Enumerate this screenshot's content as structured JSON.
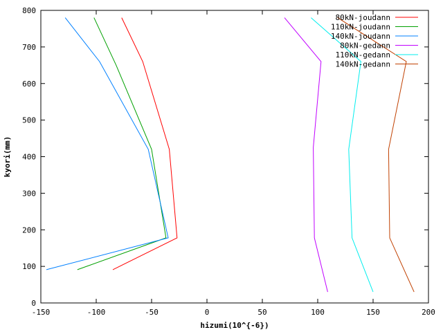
{
  "chart_data": {
    "type": "line",
    "title": "",
    "xlabel": "hizumi(10^{-6})",
    "ylabel": "kyori(mm)",
    "xlim": [
      -150,
      200
    ],
    "ylim": [
      0,
      800
    ],
    "x_ticks": [
      -150,
      -100,
      -50,
      0,
      50,
      100,
      150,
      200
    ],
    "y_ticks": [
      0,
      100,
      200,
      300,
      400,
      500,
      600,
      700,
      800
    ],
    "legend_position": "top-right",
    "grid": false,
    "series": [
      {
        "name": "80kN-joudann",
        "color": "#ff0000",
        "points": [
          [
            -77,
            780
          ],
          [
            -58,
            660
          ],
          [
            -34,
            420
          ],
          [
            -27,
            178
          ],
          [
            -85,
            91
          ]
        ]
      },
      {
        "name": "110kN-joudann",
        "color": "#00a000",
        "points": [
          [
            -102,
            780
          ],
          [
            -82,
            650
          ],
          [
            -50,
            420
          ],
          [
            -37,
            178
          ],
          [
            -117,
            91
          ]
        ]
      },
      {
        "name": "140kN-joudann",
        "color": "#0080ff",
        "points": [
          [
            -128,
            780
          ],
          [
            -97,
            660
          ],
          [
            -53,
            420
          ],
          [
            -35,
            178
          ],
          [
            -145,
            91
          ]
        ]
      },
      {
        "name": "80kN-gedann",
        "color": "#c000ff",
        "points": [
          [
            70,
            780
          ],
          [
            103,
            660
          ],
          [
            96,
            425
          ],
          [
            97,
            178
          ],
          [
            109,
            30
          ]
        ]
      },
      {
        "name": "110kN-gedann",
        "color": "#00eeee",
        "points": [
          [
            94,
            780
          ],
          [
            139,
            660
          ],
          [
            128,
            420
          ],
          [
            131,
            178
          ],
          [
            150,
            30
          ]
        ]
      },
      {
        "name": "140kN-gedann",
        "color": "#c04000",
        "points": [
          [
            118,
            780
          ],
          [
            180,
            660
          ],
          [
            164,
            420
          ],
          [
            165,
            178
          ],
          [
            187,
            30
          ]
        ]
      }
    ]
  }
}
